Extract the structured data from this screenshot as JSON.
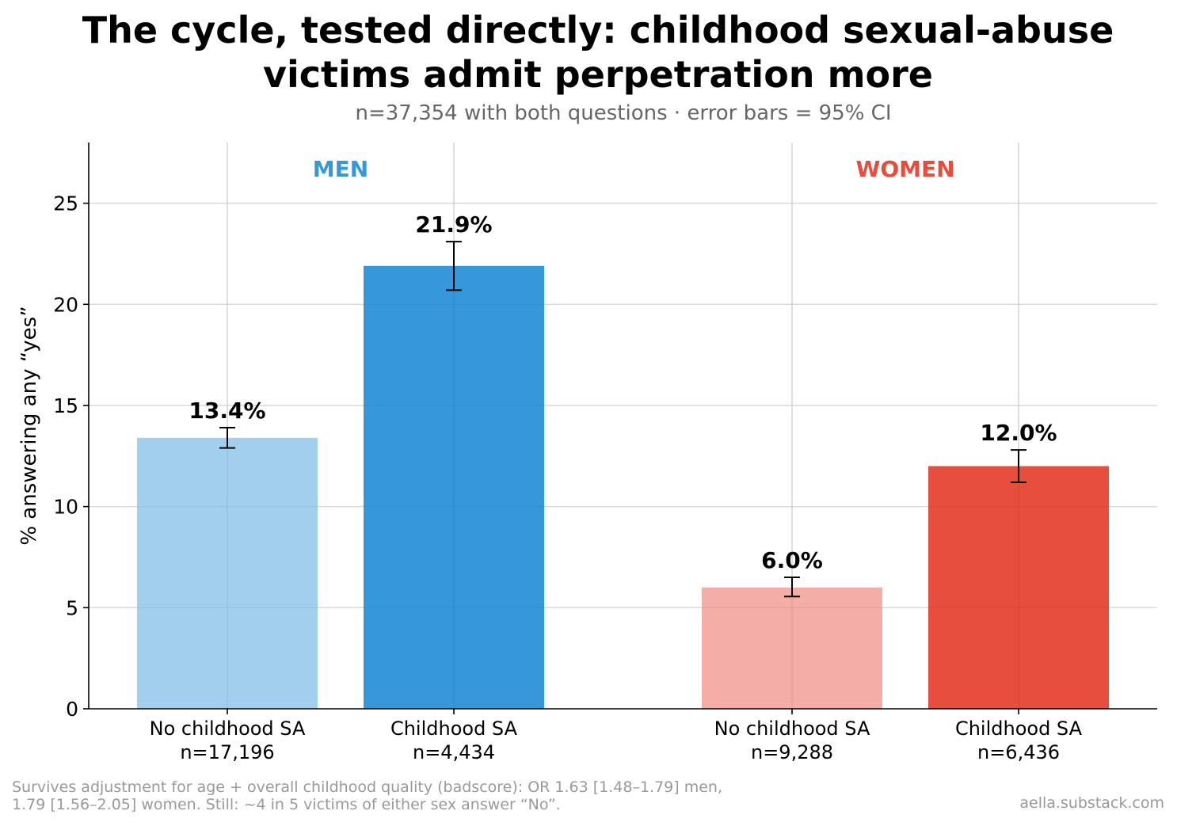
{
  "title_line1": "The cycle, tested directly: childhood sexual-abuse",
  "title_line2": "victims admit perpetration more",
  "subtitle": "n=37,354 with both questions · error bars = 95% CI",
  "footnote_line1": "Survives adjustment for age + overall childhood quality (badscore): OR 1.63 [1.48–1.79] men,",
  "footnote_line2": "1.79 [1.56–2.05] women. Still: ~4 in 5 victims of either sex answer “No”.",
  "credit": "aella.substack.com",
  "chart_data": {
    "type": "bar",
    "title": "The cycle, tested directly: childhood sexual-abuse victims admit perpetration more",
    "subtitle": "n=37,354 with both questions · error bars = 95% CI",
    "ylabel": "% answering any “yes”",
    "xlabel": "",
    "ylim": [
      0,
      28
    ],
    "yticks": [
      0,
      5,
      10,
      15,
      20,
      25
    ],
    "grid": true,
    "groups": [
      {
        "label": "MEN",
        "color": "#3498db"
      },
      {
        "label": "WOMEN",
        "color": "#e74c3c"
      }
    ],
    "bars": [
      {
        "group": "MEN",
        "category": "No childhood SA",
        "n_label": "n=17,196",
        "value": 13.4,
        "ci": [
          12.9,
          13.9
        ],
        "value_label": "13.4%",
        "color": "#a3cfee"
      },
      {
        "group": "MEN",
        "category": "Childhood SA",
        "n_label": "n=4,434",
        "value": 21.9,
        "ci": [
          20.7,
          23.1
        ],
        "value_label": "21.9%",
        "color": "#3698da"
      },
      {
        "group": "WOMEN",
        "category": "No childhood SA",
        "n_label": "n=9,288",
        "value": 6.0,
        "ci": [
          5.55,
          6.5
        ],
        "value_label": "6.0%",
        "color": "#f4aea7"
      },
      {
        "group": "WOMEN",
        "category": "Childhood SA",
        "n_label": "n=6,436",
        "value": 12.0,
        "ci": [
          11.2,
          12.8
        ],
        "value_label": "12.0%",
        "color": "#e74e3e"
      }
    ]
  }
}
